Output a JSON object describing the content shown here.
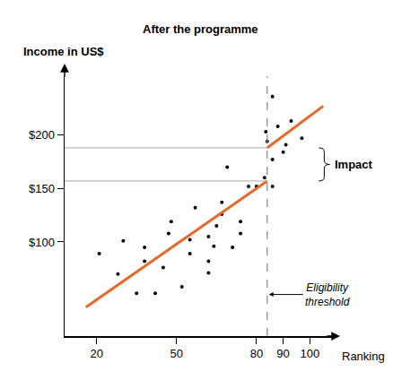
{
  "chart_data": {
    "type": "scatter",
    "title": "After the programme",
    "y_label": "Income in US$",
    "x_label": "Ranking",
    "xlim": [
      8,
      110
    ],
    "ylim": [
      12,
      255
    ],
    "xticks": [
      20,
      50,
      80,
      90,
      100
    ],
    "yticks": [
      {
        "value": 100,
        "label": "$100"
      },
      {
        "value": 150,
        "label": "$150"
      },
      {
        "value": 200,
        "label": "$200"
      }
    ],
    "grid": false,
    "series": [
      {
        "type": "scatter",
        "color": "#000000",
        "marker": "circle",
        "x": [
          21,
          28,
          30,
          35,
          38,
          38,
          42,
          45,
          47,
          48,
          52,
          55,
          55,
          57,
          62,
          62,
          62,
          65,
          64,
          67,
          67,
          69,
          71,
          74,
          74,
          77,
          80,
          83,
          83.5,
          84,
          86,
          86,
          86,
          88,
          90,
          91,
          93,
          97
        ],
        "values": [
          89,
          70,
          101,
          52,
          95,
          82,
          52,
          76,
          108,
          119,
          58,
          102,
          89,
          132,
          82,
          71,
          105,
          115,
          96,
          126,
          137,
          170,
          95,
          108,
          119,
          152,
          152,
          160,
          203,
          194,
          152,
          177,
          236,
          208,
          184,
          191,
          213,
          197
        ]
      },
      {
        "type": "line",
        "color": "#e8682a",
        "line_style": "solid",
        "x": [
          16,
          84
        ],
        "values": [
          39,
          157
        ]
      },
      {
        "type": "line",
        "color": "#e8682a",
        "line_style": "solid",
        "x": [
          84,
          105
        ],
        "values": [
          188,
          227
        ]
      }
    ],
    "threshold": {
      "x": 84,
      "label": "Eligibility threshold",
      "color": "#888888",
      "line_style": "dash"
    },
    "impact": {
      "label": "Impact",
      "from": 157,
      "to": 188,
      "color": "#aaaaaa"
    }
  }
}
